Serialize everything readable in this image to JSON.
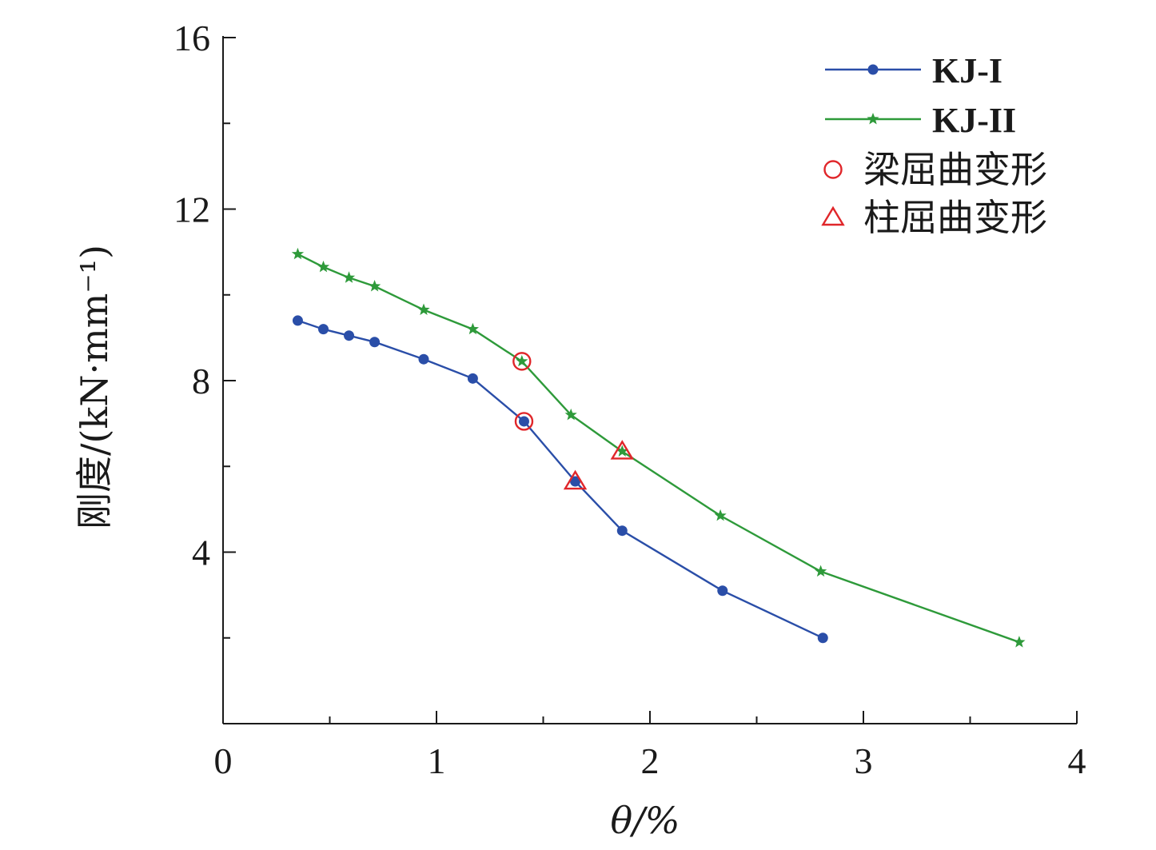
{
  "chart_data": {
    "type": "line",
    "xlabel": "θ/%",
    "ylabel": "刚度/(kN·mm⁻¹)",
    "xlim": [
      0,
      4
    ],
    "ylim": [
      0,
      16
    ],
    "x_ticks": [
      "0",
      "1",
      "2",
      "3",
      "4"
    ],
    "y_ticks": [
      "4",
      "8",
      "12",
      "16"
    ],
    "grid": false,
    "legend_position": "top-right",
    "series": [
      {
        "name": "KJ-I",
        "color": "#2a4ea8",
        "marker": "circle",
        "x": [
          0.35,
          0.47,
          0.59,
          0.71,
          0.94,
          1.17,
          1.41,
          1.65,
          1.87,
          2.34,
          2.81
        ],
        "y": [
          9.4,
          9.2,
          9.05,
          8.9,
          8.5,
          8.05,
          7.05,
          5.65,
          4.5,
          3.1,
          2.0
        ]
      },
      {
        "name": "KJ-II",
        "color": "#2e9a3a",
        "marker": "star",
        "x": [
          0.35,
          0.47,
          0.59,
          0.71,
          0.94,
          1.17,
          1.4,
          1.63,
          1.87,
          2.33,
          2.8,
          3.73
        ],
        "y": [
          10.95,
          10.65,
          10.4,
          10.2,
          9.65,
          9.2,
          8.45,
          7.2,
          6.35,
          4.85,
          3.55,
          1.9
        ]
      }
    ],
    "annotations": [
      {
        "label": "梁屈曲变形",
        "marker": "open-circle",
        "color": "#e0262a",
        "points": [
          [
            1.4,
            8.45
          ],
          [
            1.41,
            7.05
          ]
        ]
      },
      {
        "label": "柱屈曲变形",
        "marker": "open-triangle",
        "color": "#e0262a",
        "points": [
          [
            1.87,
            6.35
          ],
          [
            1.65,
            5.65
          ]
        ]
      }
    ],
    "legend": [
      "KJ-I",
      "KJ-II",
      "梁屈曲变形",
      "柱屈曲变形"
    ]
  }
}
